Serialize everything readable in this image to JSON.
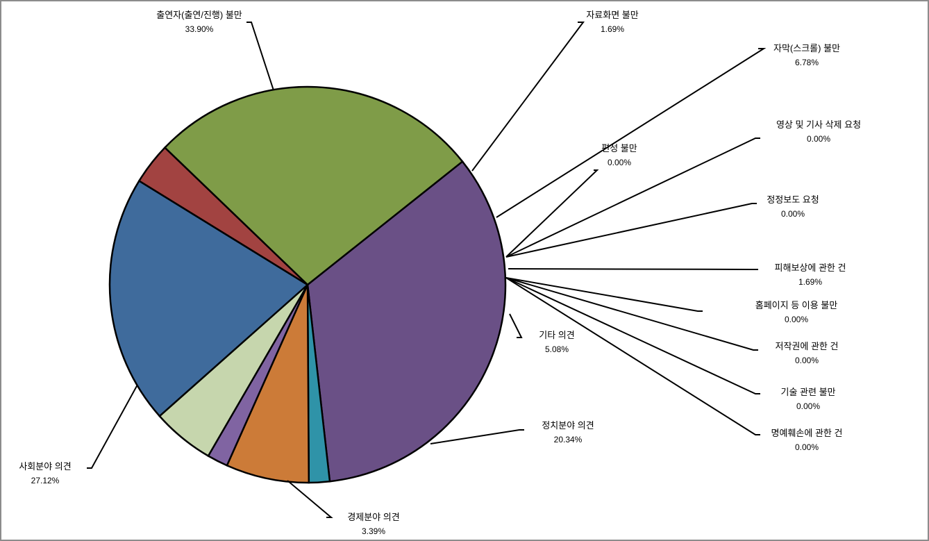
{
  "chart_data": {
    "type": "pie",
    "title": "",
    "slices": [
      {
        "label": "출연자(출연/진행) 불만",
        "value": 33.9,
        "value_label": "33.90%",
        "color": "#6a5086"
      },
      {
        "label": "자료화면 불만",
        "value": 1.69,
        "value_label": "1.69%",
        "color": "#2f93a8"
      },
      {
        "label": "자막(스크롤) 불만",
        "value": 6.78,
        "value_label": "6.78%",
        "color": "#cc7b38"
      },
      {
        "label": "편성 불만",
        "value": 0.0,
        "value_label": "0.00%",
        "color": "#4f81bd"
      },
      {
        "label": "영상 및 기사 삭제 요청",
        "value": 0.0,
        "value_label": "0.00%",
        "color": "#c0504d"
      },
      {
        "label": "정정보도 요청",
        "value": 0.0,
        "value_label": "0.00%",
        "color": "#9bbb59"
      },
      {
        "label": "피해보상에 관한 건",
        "value": 1.69,
        "value_label": "1.69%",
        "color": "#8064a2"
      },
      {
        "label": "홈페이지 등 이용 불만",
        "value": 0.0,
        "value_label": "0.00%",
        "color": "#4bacc6"
      },
      {
        "label": "저작권에 관한 건",
        "value": 0.0,
        "value_label": "0.00%",
        "color": "#f79646"
      },
      {
        "label": "기술 관련 불만",
        "value": 0.0,
        "value_label": "0.00%",
        "color": "#2c4d75"
      },
      {
        "label": "명예훼손에 관한 건",
        "value": 0.0,
        "value_label": "0.00%",
        "color": "#772c2a"
      },
      {
        "label": "기타 의견",
        "value": 5.08,
        "value_label": "5.08%",
        "color": "#c6d6ad"
      },
      {
        "label": "정치분야 의견",
        "value": 20.34,
        "value_label": "20.34%",
        "color": "#3f6b9c"
      },
      {
        "label": "경제분야 의견",
        "value": 3.39,
        "value_label": "3.39%",
        "color": "#a24341"
      },
      {
        "label": "사회분야 의견",
        "value": 27.12,
        "value_label": "27.12%",
        "color": "#7f9c48"
      }
    ],
    "legend": "none"
  }
}
